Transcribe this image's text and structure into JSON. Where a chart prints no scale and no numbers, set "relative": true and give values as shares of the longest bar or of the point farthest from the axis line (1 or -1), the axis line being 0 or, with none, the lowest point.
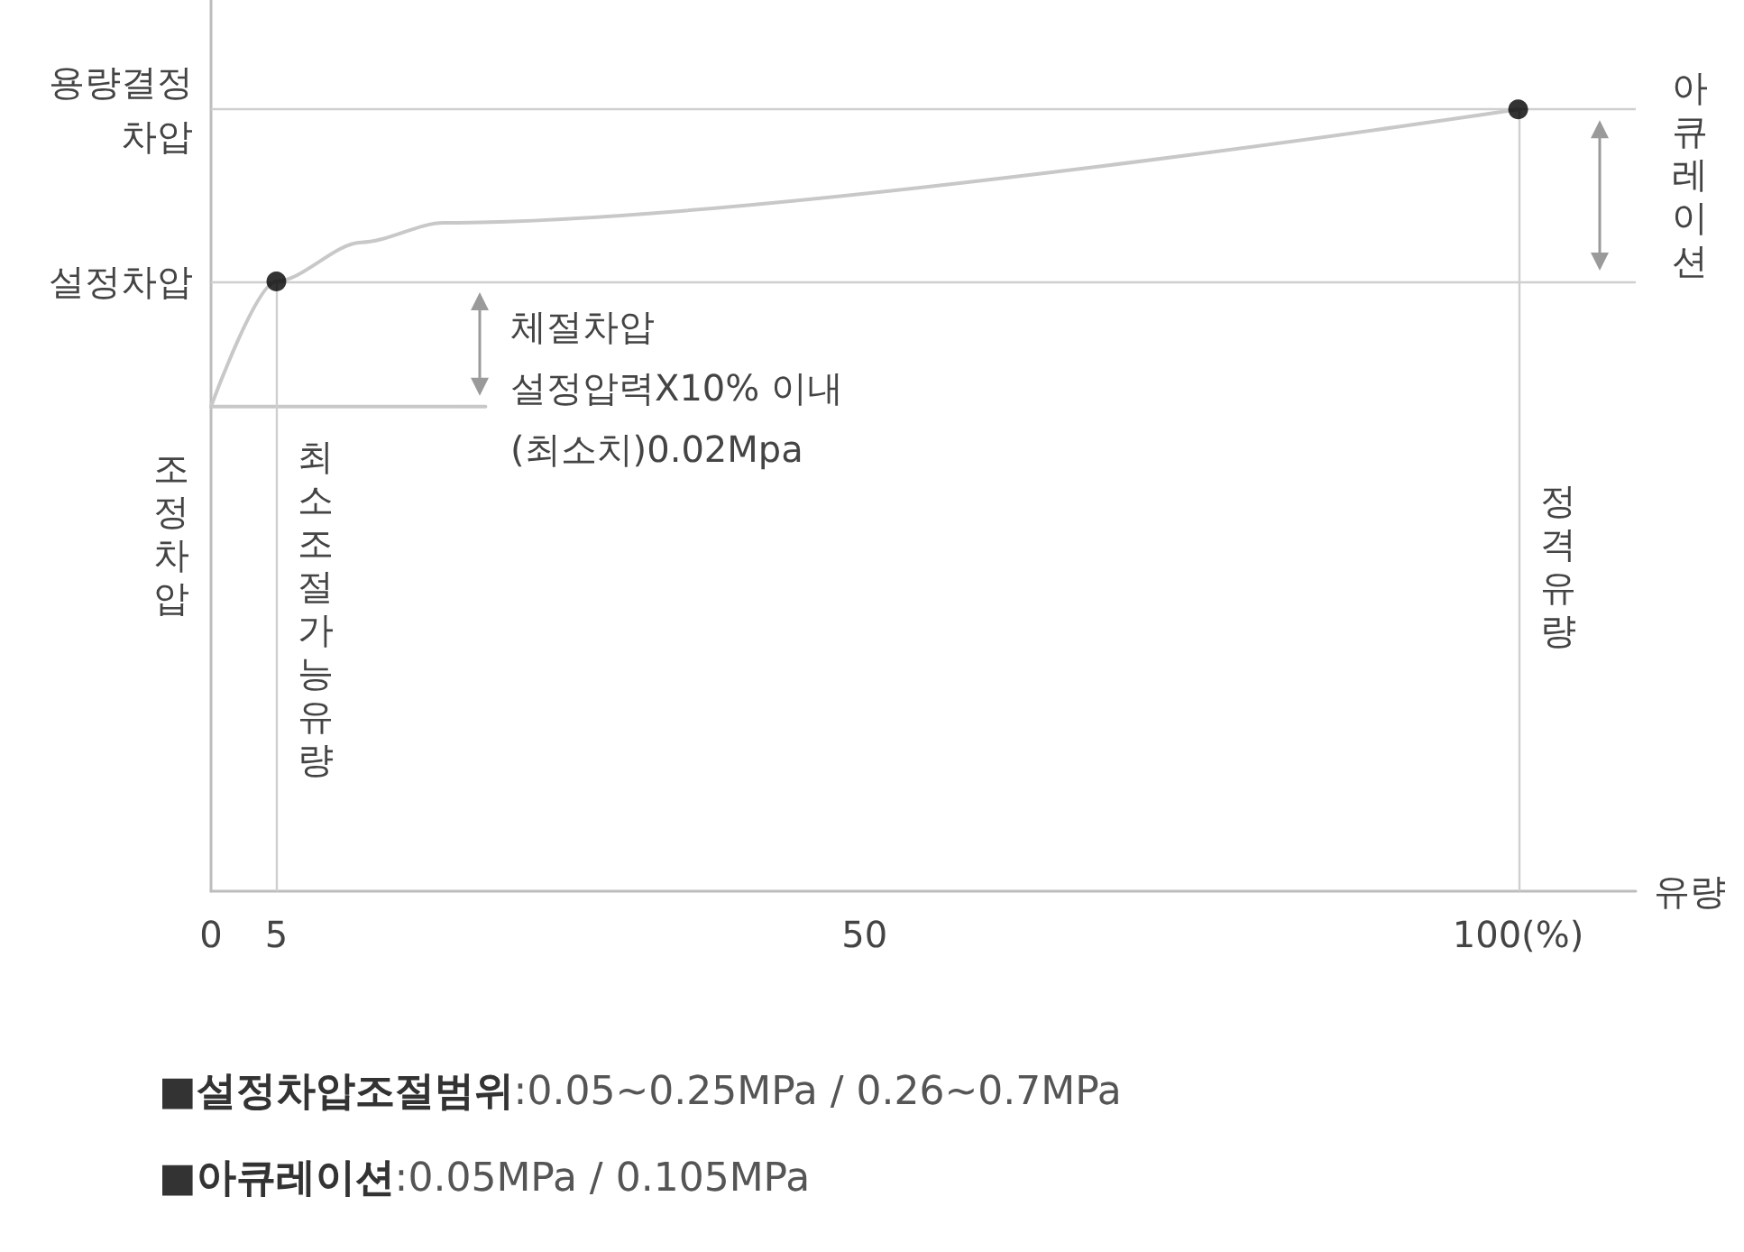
{
  "chart_data": {
    "type": "line",
    "relative": true,
    "xlabel": "유량",
    "xlim": [
      0,
      109
    ],
    "xticks": [
      0,
      5,
      50,
      {
        "value": 100,
        "label": "100(%)"
      }
    ],
    "grid": false,
    "series": [
      {
        "color": "#c8c8c8",
        "marker": "none",
        "x": [
          0,
          5,
          11.5,
          17.8,
          100
        ],
        "values": [
          0.62,
          0.78,
          0.83,
          0.855,
          1
        ]
      },
      {
        "color": "#c8c8c8",
        "marker": "none",
        "x": [
          0,
          21
        ],
        "values": [
          0.62,
          0.62
        ]
      },
      {
        "type": "scatter",
        "color": "#000000",
        "marker": "circle",
        "x": [
          5,
          100
        ],
        "values": [
          0.78,
          1
        ]
      }
    ],
    "ref_lines": [
      {
        "axis": "y",
        "value": 1,
        "label": "용량결정\n차압"
      },
      {
        "axis": "y",
        "value": 0.78,
        "label": "설정차압"
      },
      {
        "axis": "x",
        "value": 5,
        "label": "최소조절가능유량"
      },
      {
        "axis": "x",
        "value": 100,
        "label": "정격유량"
      }
    ],
    "annotations": [
      "아큐레이션",
      "체절차압\n설정압력X10% 이내\n(최소치)0.02Mpa",
      "조정차압",
      "■설정차압조절범위:0.05~0.25MPa / 0.26~0.7MPa",
      "■아큐레이션:0.05MPa / 0.105MPa"
    ]
  }
}
